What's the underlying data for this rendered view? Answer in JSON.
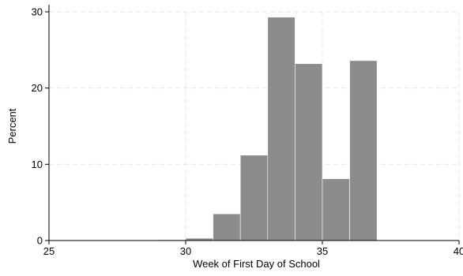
{
  "chart_data": {
    "type": "bar",
    "subtype": "histogram",
    "xlabel": "Week of First Day of School",
    "ylabel": "Percent",
    "xlim": [
      25,
      40
    ],
    "ylim": [
      0,
      30
    ],
    "xticks": [
      25,
      30,
      35,
      40
    ],
    "yticks": [
      0,
      10,
      20,
      30
    ],
    "grid": true,
    "bin_width": 1,
    "bins": [
      {
        "start": 27,
        "end": 28,
        "value": 0.05
      },
      {
        "start": 28,
        "end": 29,
        "value": 0.05
      },
      {
        "start": 29,
        "end": 30,
        "value": 0.1
      },
      {
        "start": 30,
        "end": 31,
        "value": 0.3
      },
      {
        "start": 31,
        "end": 32,
        "value": 3.5
      },
      {
        "start": 32,
        "end": 33,
        "value": 11.2
      },
      {
        "start": 33,
        "end": 34,
        "value": 29.3
      },
      {
        "start": 34,
        "end": 35,
        "value": 23.2
      },
      {
        "start": 35,
        "end": 36,
        "value": 8.1
      },
      {
        "start": 36,
        "end": 37,
        "value": 23.6
      },
      {
        "start": 37,
        "end": 38,
        "value": 0.05
      }
    ],
    "colors": {
      "bar_fill": "#8c8c8c",
      "bar_stroke": "#ffffff",
      "grid": "#e6e6e6",
      "axis": "#000000"
    }
  }
}
